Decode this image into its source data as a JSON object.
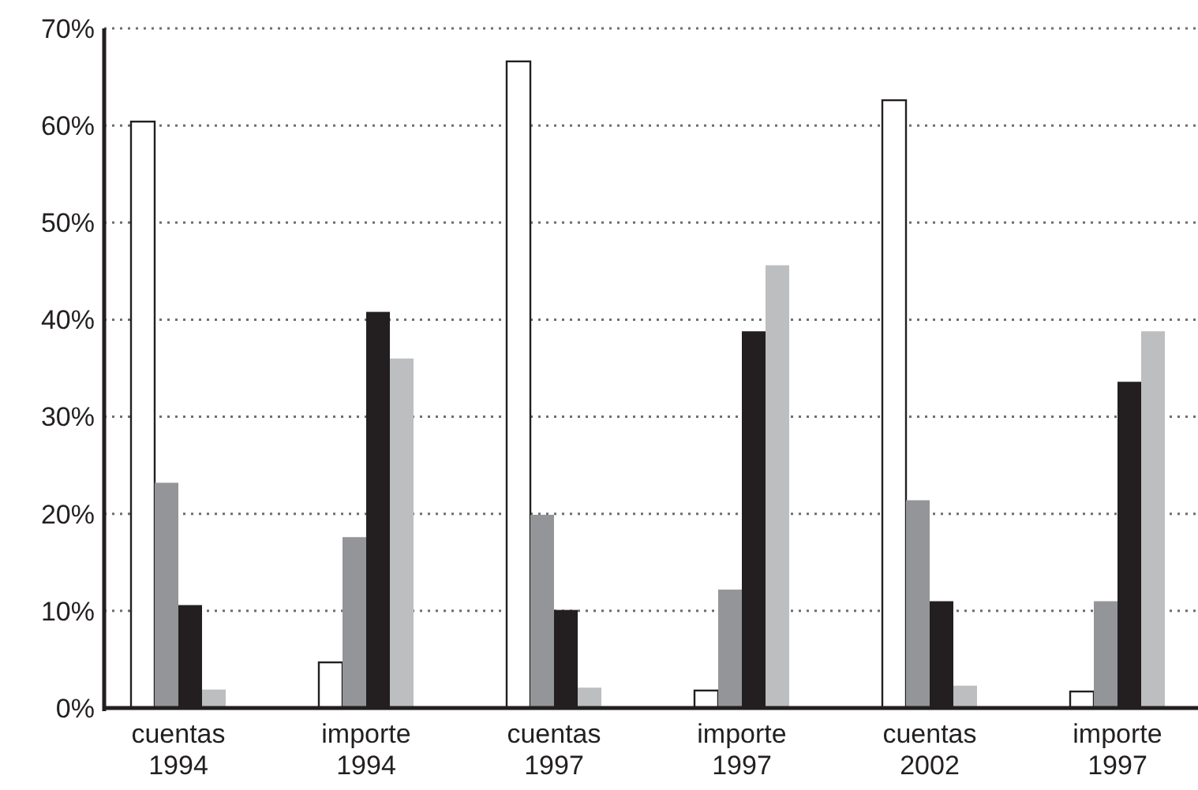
{
  "chart_data": {
    "type": "bar",
    "categories": [
      "cuentas 1994",
      "importe 1994",
      "cuentas 1997",
      "importe 1997",
      "cuentas 2002",
      "importe 1997"
    ],
    "series": [
      {
        "color": "#ffffff",
        "values": [
          60.4,
          4.7,
          66.6,
          1.8,
          62.6,
          1.7
        ]
      },
      {
        "color": "#939598",
        "values": [
          23.2,
          17.6,
          19.9,
          12.2,
          21.4,
          11.0
        ]
      },
      {
        "color": "#231f20",
        "values": [
          10.6,
          40.8,
          10.1,
          38.8,
          11.0,
          33.6
        ]
      },
      {
        "color": "#bcbec0",
        "values": [
          1.9,
          36.0,
          2.1,
          45.6,
          2.3,
          38.8
        ]
      }
    ],
    "ylim": [
      0,
      70
    ],
    "yticks": [
      {
        "value": 0,
        "label": "0%"
      },
      {
        "value": 10,
        "label": "10%"
      },
      {
        "value": 20,
        "label": "20%"
      },
      {
        "value": 30,
        "label": "30%"
      },
      {
        "value": 40,
        "label": "40%"
      },
      {
        "value": 50,
        "label": "50%"
      },
      {
        "value": 60,
        "label": "60%"
      },
      {
        "value": 70,
        "label": "70%"
      }
    ],
    "grid": "y"
  }
}
